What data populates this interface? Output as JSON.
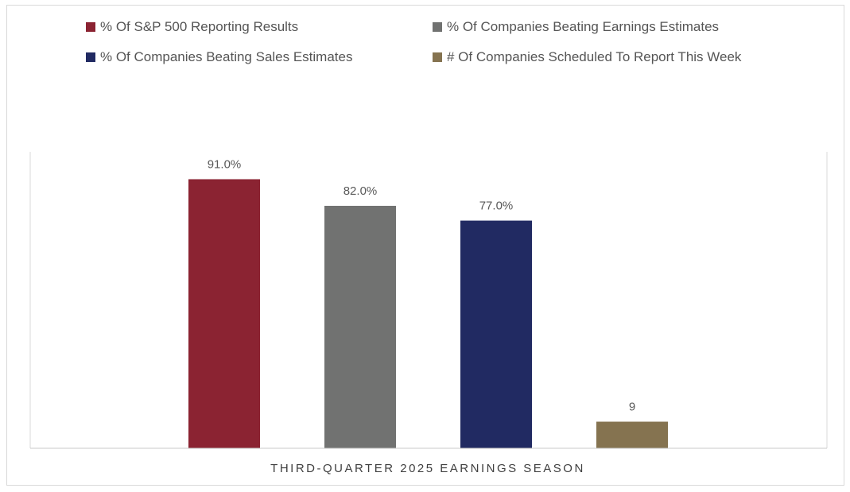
{
  "chart_data": {
    "type": "bar",
    "xlabel": "THIRD-QUARTER 2025 EARNINGS SEASON",
    "grid": false,
    "legend_position": "top",
    "series": [
      {
        "name": "% Of S&P 500 Reporting Results",
        "value": 91.0,
        "label": "91.0%",
        "color": "#8B2332"
      },
      {
        "name": "% Of Companies Beating Earnings Estimates",
        "value": 82.0,
        "label": "82.0%",
        "color": "#717271"
      },
      {
        "name": "% Of Companies Beating Sales Estimates",
        "value": 77.0,
        "label": "77.0%",
        "color": "#212A62"
      },
      {
        "name": "# Of Companies Scheduled To Report This Week",
        "value": 9,
        "label": "9",
        "color": "#857350"
      }
    ]
  }
}
